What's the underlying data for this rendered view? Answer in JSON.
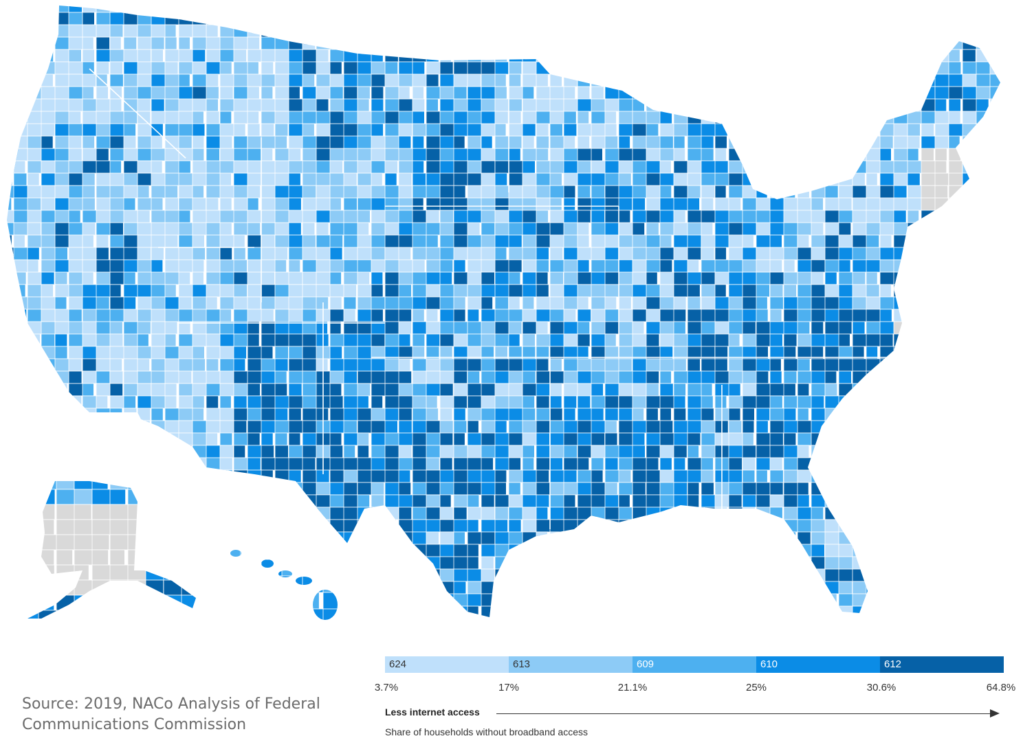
{
  "source": {
    "line1": "Source: 2019, NACo Analysis of Federal",
    "line2": "Communications Commission"
  },
  "legend": {
    "bins": [
      {
        "count": "624",
        "color": "#bfe0fb",
        "text_color": "#333333"
      },
      {
        "count": "613",
        "color": "#8dcbf6",
        "text_color": "#333333"
      },
      {
        "count": "609",
        "color": "#4db0f0",
        "text_color": "#ffffff"
      },
      {
        "count": "610",
        "color": "#0b8ce6",
        "text_color": "#ffffff"
      },
      {
        "count": "612",
        "color": "#0661a7",
        "text_color": "#ffffff"
      }
    ],
    "breaks": [
      "3.7%",
      "17%",
      "21.1%",
      "25%",
      "30.6%",
      "64.8%"
    ],
    "direction_label": "Less internet access",
    "caption": "Share of households without broadband access"
  },
  "map": {
    "no_data_color": "#d9d9d9",
    "border_color": "#ffffff",
    "regions": [
      "contiguous-us",
      "alaska",
      "hawaii"
    ]
  }
}
